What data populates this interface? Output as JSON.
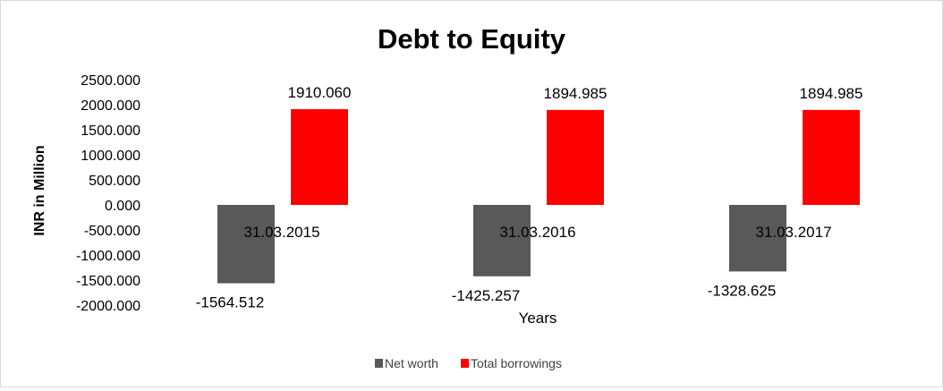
{
  "chart_data": {
    "type": "bar",
    "title": "Debt to Equity",
    "xlabel": "Years",
    "ylabel": "INR in Million",
    "categories": [
      "31.03.2015",
      "31.03.2016",
      "31.03.2017"
    ],
    "series": [
      {
        "name": "Net worth",
        "color": "#595959",
        "values": [
          -1564.512,
          -1425.257,
          -1328.625
        ],
        "labels": [
          "-1564.512",
          "-1425.257",
          "-1328.625"
        ]
      },
      {
        "name": "Total borrowings",
        "color": "#ff0000",
        "values": [
          1910.06,
          1894.985,
          1894.985
        ],
        "labels": [
          "1910.060",
          "1894.985",
          "1894.985"
        ]
      }
    ],
    "ylim": [
      -2000,
      2500
    ],
    "yticks": [
      2500,
      2000,
      1500,
      1000,
      500,
      0,
      -500,
      -1000,
      -1500,
      -2000
    ],
    "ytick_labels": [
      "2500.000",
      "2000.000",
      "1500.000",
      "1000.000",
      "500.000",
      "0.000",
      "-500.000",
      "-1000.000",
      "-1500.000",
      "-2000.000"
    ],
    "grid": false,
    "legend_position": "bottom"
  }
}
